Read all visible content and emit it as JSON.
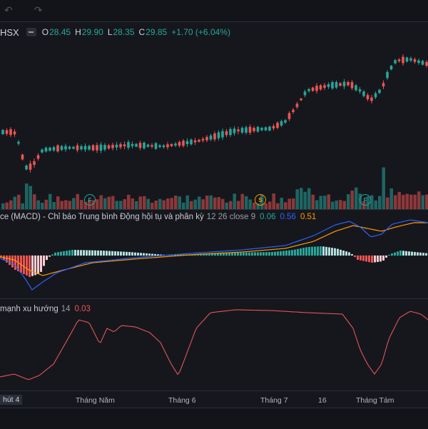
{
  "legend": {
    "symbol": "HSX",
    "o_label": "O",
    "o_value": "28.45",
    "h_label": "H",
    "h_value": "29.90",
    "l_label": "L",
    "l_value": "28.35",
    "c_label": "C",
    "c_value": "29.85",
    "change": "+1.70 (+6.04%)"
  },
  "macd": {
    "label": "ce (MACD) - Chỉ báo Trung bình Động hội tụ và phân kỳ",
    "params": "12 26 close 9",
    "hist_value": "0.06",
    "macd_value": "0.56",
    "signal_value": "0.51"
  },
  "adx": {
    "label": "mạnh xu hướng",
    "params": "14",
    "value": "0.03"
  },
  "events": [
    {
      "type": "F",
      "label": "F"
    },
    {
      "type": "S",
      "label": "S"
    },
    {
      "type": "F",
      "label": "F"
    }
  ],
  "xaxis": {
    "first": "hút 4",
    "labels": [
      "Tháng Năm",
      "Tháng 6",
      "Tháng 7",
      "16",
      "Tháng Tám"
    ]
  },
  "colors": {
    "up": "#26a69a",
    "down": "#ef5350",
    "macd_line": "#2962ff",
    "signal_line": "#ff9800",
    "hist_up_strong": "#26a69a",
    "hist_up_weak": "#b2dfdb",
    "hist_down_strong": "#ef5350",
    "hist_down_weak": "#ffcdd2"
  }
}
